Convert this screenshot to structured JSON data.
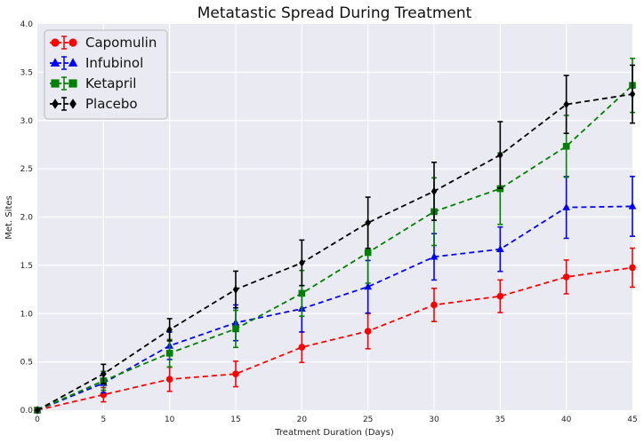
{
  "chart_data": {
    "type": "line",
    "title": "Metatastic Spread During Treatment",
    "xlabel": "Treatment Duration (Days)",
    "ylabel": "Met. Sites",
    "xlim": [
      0,
      45
    ],
    "ylim": [
      0,
      4.0
    ],
    "xticks": [
      0,
      5,
      10,
      15,
      20,
      25,
      30,
      35,
      40,
      45
    ],
    "yticks": [
      0.0,
      0.5,
      1.0,
      1.5,
      2.0,
      2.5,
      3.0,
      3.5,
      4.0
    ],
    "xtick_labels": [
      "0",
      "5",
      "10",
      "15",
      "20",
      "25",
      "30",
      "35",
      "40",
      "45"
    ],
    "ytick_labels": [
      "0.0",
      "0.5",
      "1.0",
      "1.5",
      "2.0",
      "2.5",
      "3.0",
      "3.5",
      "4.0"
    ],
    "grid": true,
    "legend_position": "top-left",
    "x": [
      0,
      5,
      10,
      15,
      20,
      25,
      30,
      35,
      40,
      45
    ],
    "series": [
      {
        "name": "Capomulin",
        "color": "#ff0000",
        "marker": "circle",
        "values": [
          0.0,
          0.16,
          0.32,
          0.375,
          0.652,
          0.818,
          1.09,
          1.18,
          1.38,
          1.476
        ],
        "errors": [
          0.0,
          0.074,
          0.125,
          0.132,
          0.158,
          0.182,
          0.172,
          0.169,
          0.175,
          0.202
        ]
      },
      {
        "name": "Infubinol",
        "color": "#0000ff",
        "marker": "triangle",
        "values": [
          0.0,
          0.28,
          0.667,
          0.905,
          1.05,
          1.278,
          1.588,
          1.667,
          2.1,
          2.111
        ],
        "errors": [
          0.0,
          0.1,
          0.142,
          0.185,
          0.24,
          0.272,
          0.24,
          0.23,
          0.32,
          0.31
        ]
      },
      {
        "name": "Ketapril",
        "color": "#008000",
        "marker": "square",
        "values": [
          0.0,
          0.304,
          0.59,
          0.842,
          1.21,
          1.632,
          2.056,
          2.294,
          2.733,
          3.364
        ],
        "errors": [
          0.0,
          0.098,
          0.142,
          0.192,
          0.237,
          0.317,
          0.35,
          0.37,
          0.32,
          0.28
        ]
      },
      {
        "name": "Placebo",
        "color": "#000000",
        "marker": "diamond",
        "values": [
          0.0,
          0.375,
          0.833,
          1.25,
          1.526,
          1.941,
          2.267,
          2.643,
          3.167,
          3.273
        ],
        "errors": [
          0.0,
          0.1,
          0.115,
          0.19,
          0.236,
          0.265,
          0.3,
          0.345,
          0.3,
          0.3
        ]
      }
    ]
  }
}
